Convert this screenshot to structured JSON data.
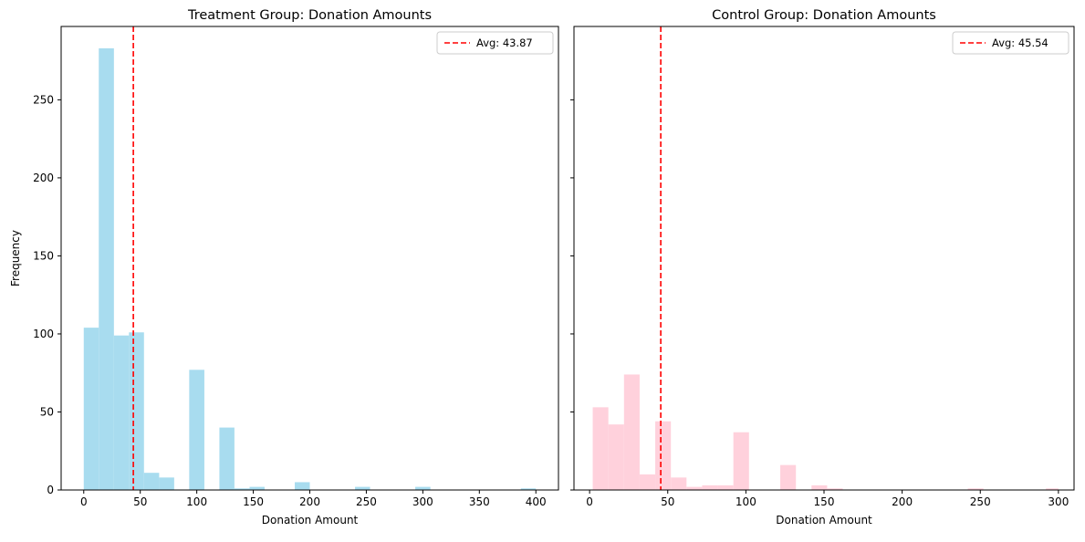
{
  "chart_data": [
    {
      "type": "bar",
      "title": "Treatment Group: Donation Amounts",
      "xlabel": "Donation Amount",
      "ylabel": "Frequency",
      "xlim": [
        -20,
        420
      ],
      "ylim": [
        0,
        297
      ],
      "xticks": [
        0,
        50,
        100,
        150,
        200,
        250,
        300,
        350,
        400
      ],
      "yticks": [
        0,
        50,
        100,
        150,
        200,
        250
      ],
      "bar_color": "#A8DCEF",
      "bins": [
        {
          "x0": 0,
          "x1": 13.3,
          "count": 104
        },
        {
          "x0": 13.3,
          "x1": 26.7,
          "count": 283
        },
        {
          "x0": 26.7,
          "x1": 40,
          "count": 99
        },
        {
          "x0": 40,
          "x1": 53.3,
          "count": 101
        },
        {
          "x0": 53.3,
          "x1": 66.7,
          "count": 11
        },
        {
          "x0": 66.7,
          "x1": 80,
          "count": 8
        },
        {
          "x0": 93.3,
          "x1": 106.7,
          "count": 77
        },
        {
          "x0": 120,
          "x1": 133.3,
          "count": 40
        },
        {
          "x0": 133.3,
          "x1": 146.7,
          "count": 1
        },
        {
          "x0": 146.7,
          "x1": 160,
          "count": 2
        },
        {
          "x0": 186.7,
          "x1": 200,
          "count": 5
        },
        {
          "x0": 240,
          "x1": 253.3,
          "count": 2
        },
        {
          "x0": 293.3,
          "x1": 306.7,
          "count": 2
        },
        {
          "x0": 386.7,
          "x1": 400,
          "count": 1
        }
      ],
      "avg_value": 43.87,
      "avg_color": "#FF0000",
      "legend": {
        "label": "Avg: 43.87",
        "position": "top-right"
      }
    },
    {
      "type": "bar",
      "title": "Control Group: Donation Amounts",
      "xlabel": "Donation Amount",
      "ylabel": "",
      "xlim": [
        -10,
        310
      ],
      "ylim": [
        0,
        297
      ],
      "xticks": [
        0,
        50,
        100,
        150,
        200,
        250,
        300
      ],
      "yticks": [
        0,
        50,
        100,
        150,
        200,
        250
      ],
      "bar_color": "#FFD1DC",
      "bins": [
        {
          "x0": 2,
          "x1": 12,
          "count": 53
        },
        {
          "x0": 12,
          "x1": 22,
          "count": 42
        },
        {
          "x0": 22,
          "x1": 32,
          "count": 74
        },
        {
          "x0": 32,
          "x1": 42,
          "count": 10
        },
        {
          "x0": 42,
          "x1": 52,
          "count": 44
        },
        {
          "x0": 52,
          "x1": 62,
          "count": 8
        },
        {
          "x0": 62,
          "x1": 72,
          "count": 2
        },
        {
          "x0": 72,
          "x1": 82,
          "count": 3
        },
        {
          "x0": 82,
          "x1": 92,
          "count": 3
        },
        {
          "x0": 92,
          "x1": 102,
          "count": 37
        },
        {
          "x0": 122,
          "x1": 132,
          "count": 16
        },
        {
          "x0": 142,
          "x1": 152,
          "count": 3
        },
        {
          "x0": 152,
          "x1": 162,
          "count": 1
        },
        {
          "x0": 242,
          "x1": 252,
          "count": 1
        },
        {
          "x0": 292,
          "x1": 300,
          "count": 1
        }
      ],
      "avg_value": 45.54,
      "avg_color": "#FF0000",
      "legend": {
        "label": "Avg: 45.54",
        "position": "top-right"
      }
    }
  ]
}
